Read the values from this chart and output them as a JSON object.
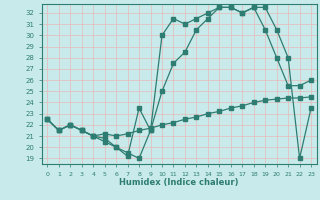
{
  "xlabel": "Humidex (Indice chaleur)",
  "bg_color": "#c8eaea",
  "line_color": "#2e7d72",
  "grid_color": "#e8b8b8",
  "xlim": [
    -0.5,
    23.5
  ],
  "ylim": [
    18.5,
    32.8
  ],
  "xticks": [
    0,
    1,
    2,
    3,
    4,
    5,
    6,
    7,
    8,
    9,
    10,
    11,
    12,
    13,
    14,
    15,
    16,
    17,
    18,
    19,
    20,
    21,
    22,
    23
  ],
  "yticks": [
    19,
    20,
    21,
    22,
    23,
    24,
    25,
    26,
    27,
    28,
    29,
    30,
    31,
    32
  ],
  "line1_x": [
    0,
    1,
    2,
    3,
    4,
    5,
    6,
    7,
    8,
    9,
    10,
    11,
    12,
    13,
    14,
    15,
    16,
    17,
    18,
    19,
    20,
    21,
    22,
    23
  ],
  "line1_y": [
    22.5,
    21.5,
    22.0,
    21.5,
    21.0,
    21.2,
    21.0,
    21.2,
    21.5,
    21.7,
    22.0,
    22.2,
    22.5,
    22.7,
    23.0,
    23.2,
    23.5,
    23.7,
    24.0,
    24.2,
    24.3,
    24.4,
    24.4,
    24.5
  ],
  "line2_x": [
    0,
    1,
    2,
    3,
    4,
    5,
    6,
    7,
    8,
    9,
    10,
    11,
    12,
    13,
    14,
    15,
    16,
    17,
    18,
    19,
    20,
    21,
    22,
    23
  ],
  "line2_y": [
    22.5,
    21.5,
    22.0,
    21.5,
    21.0,
    20.5,
    20.0,
    19.5,
    19.0,
    21.5,
    25.0,
    27.5,
    28.5,
    30.5,
    31.5,
    32.5,
    32.5,
    32.0,
    32.5,
    30.5,
    28.0,
    25.5,
    25.5,
    26.0
  ],
  "line3_x": [
    0,
    1,
    2,
    3,
    4,
    5,
    6,
    7,
    8,
    9,
    10,
    11,
    12,
    13,
    14,
    15,
    16,
    17,
    18,
    19,
    20,
    21,
    22,
    23
  ],
  "line3_y": [
    22.5,
    21.5,
    22.0,
    21.5,
    21.0,
    20.8,
    20.0,
    19.2,
    23.5,
    21.5,
    30.0,
    31.5,
    31.0,
    31.5,
    32.0,
    32.5,
    32.5,
    32.0,
    32.5,
    32.5,
    30.5,
    28.0,
    19.0,
    23.5
  ]
}
